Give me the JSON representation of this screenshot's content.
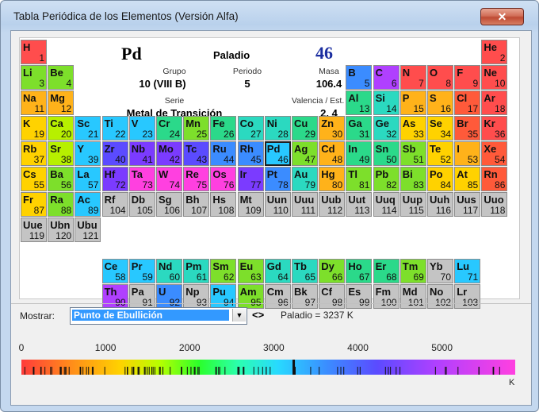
{
  "window": {
    "title": "Tabla Periódica de los Elementos (Versión Alfa)",
    "close_glyph": "✕"
  },
  "selected": {
    "symbol": "Pd",
    "name": "Paladio",
    "number": "46",
    "grupo_label": "Grupo",
    "grupo": "10 (VIII B)",
    "periodo_label": "Periodo",
    "periodo": "5",
    "masa_label": "Masa",
    "masa": "106.4",
    "serie_label": "Serie",
    "serie": "Metal de Transición",
    "valencia_label": "Valencia / Est. de Ox.",
    "valencia": "2, 4"
  },
  "controls": {
    "mostrar_label": "Mostrar:",
    "property": "Punto de Ebullición",
    "arrows": "<>",
    "readout": "Paladio = 3237 K"
  },
  "scale": {
    "ticks": [
      "0",
      "1000",
      "2000",
      "3000",
      "4000",
      "5000"
    ],
    "unit": "K",
    "max": 5870,
    "marker": 3237
  },
  "elements": [
    [
      "H",
      1,
      1,
      1,
      "#ff4d4d"
    ],
    [
      "He",
      2,
      18,
      1,
      "#ff4d4d"
    ],
    [
      "Li",
      3,
      1,
      2,
      "#7ddf2b"
    ],
    [
      "Be",
      4,
      2,
      2,
      "#7ddf2b"
    ],
    [
      "B",
      5,
      13,
      2,
      "#3b8cff"
    ],
    [
      "C",
      6,
      14,
      2,
      "#b040ff"
    ],
    [
      "N",
      7,
      15,
      2,
      "#ff4d4d"
    ],
    [
      "O",
      8,
      16,
      2,
      "#ff4d4d"
    ],
    [
      "F",
      9,
      17,
      2,
      "#ff4d4d"
    ],
    [
      "Ne",
      10,
      18,
      2,
      "#ff4d4d"
    ],
    [
      "Na",
      11,
      1,
      3,
      "#ffb21a"
    ],
    [
      "Mg",
      12,
      2,
      3,
      "#ffb21a"
    ],
    [
      "Al",
      13,
      13,
      3,
      "#2bd98a"
    ],
    [
      "Si",
      14,
      14,
      3,
      "#2bd9c0"
    ],
    [
      "P",
      15,
      15,
      3,
      "#ffb21a"
    ],
    [
      "S",
      16,
      16,
      3,
      "#ffb21a"
    ],
    [
      "Cl",
      17,
      17,
      3,
      "#ff5a3a"
    ],
    [
      "Ar",
      18,
      18,
      3,
      "#ff4d4d"
    ],
    [
      "K",
      19,
      1,
      4,
      "#ffd200"
    ],
    [
      "Ca",
      20,
      2,
      4,
      "#b7f000"
    ],
    [
      "Sc",
      21,
      3,
      4,
      "#28c8ff"
    ],
    [
      "Ti",
      22,
      4,
      4,
      "#28c8ff"
    ],
    [
      "V",
      23,
      5,
      4,
      "#28c8ff"
    ],
    [
      "Cr",
      24,
      6,
      4,
      "#2bd98a"
    ],
    [
      "Mn",
      25,
      7,
      4,
      "#7ddf2b"
    ],
    [
      "Fe",
      26,
      8,
      4,
      "#2bd98a"
    ],
    [
      "Co",
      27,
      9,
      4,
      "#2bd9c0"
    ],
    [
      "Ni",
      28,
      10,
      4,
      "#2bd9c0"
    ],
    [
      "Cu",
      29,
      11,
      4,
      "#2bd98a"
    ],
    [
      "Zn",
      30,
      12,
      4,
      "#ffb21a"
    ],
    [
      "Ga",
      31,
      13,
      4,
      "#2bd98a"
    ],
    [
      "Ge",
      32,
      14,
      4,
      "#2bd9c0"
    ],
    [
      "As",
      33,
      15,
      4,
      "#ffd200"
    ],
    [
      "Se",
      34,
      16,
      4,
      "#ffd200"
    ],
    [
      "Br",
      35,
      17,
      4,
      "#ff5a3a"
    ],
    [
      "Kr",
      36,
      18,
      4,
      "#ff4d4d"
    ],
    [
      "Rb",
      37,
      1,
      5,
      "#ffd200"
    ],
    [
      "Sr",
      38,
      2,
      5,
      "#b7f000"
    ],
    [
      "Y",
      39,
      3,
      5,
      "#28c8ff"
    ],
    [
      "Zr",
      40,
      4,
      5,
      "#5b4bff"
    ],
    [
      "Nb",
      41,
      5,
      5,
      "#7b3bff"
    ],
    [
      "Mo",
      42,
      6,
      5,
      "#7b3bff"
    ],
    [
      "Tc",
      43,
      7,
      5,
      "#5b4bff"
    ],
    [
      "Ru",
      44,
      8,
      5,
      "#3b8cff"
    ],
    [
      "Rh",
      45,
      9,
      5,
      "#3b8cff"
    ],
    [
      "Pd",
      46,
      10,
      5,
      "#28c8ff"
    ],
    [
      "Ag",
      47,
      11,
      5,
      "#7ddf2b"
    ],
    [
      "Cd",
      48,
      12,
      5,
      "#ffb21a"
    ],
    [
      "In",
      49,
      13,
      5,
      "#2bd98a"
    ],
    [
      "Sn",
      50,
      14,
      5,
      "#2bd98a"
    ],
    [
      "Sb",
      51,
      15,
      5,
      "#7ddf2b"
    ],
    [
      "Te",
      52,
      16,
      5,
      "#ffd200"
    ],
    [
      "I",
      53,
      17,
      5,
      "#ffb21a"
    ],
    [
      "Xe",
      54,
      18,
      5,
      "#ff5a3a"
    ],
    [
      "Cs",
      55,
      1,
      6,
      "#ffd200"
    ],
    [
      "Ba",
      56,
      2,
      6,
      "#7ddf2b"
    ],
    [
      "La",
      57,
      3,
      6,
      "#28c8ff"
    ],
    [
      "Hf",
      72,
      4,
      6,
      "#7b3bff"
    ],
    [
      "Ta",
      73,
      5,
      6,
      "#ff40e0"
    ],
    [
      "W",
      74,
      6,
      6,
      "#ff40e0"
    ],
    [
      "Re",
      75,
      7,
      6,
      "#ff40e0"
    ],
    [
      "Os",
      76,
      8,
      6,
      "#ff40e0"
    ],
    [
      "Ir",
      77,
      9,
      6,
      "#7b3bff"
    ],
    [
      "Pt",
      78,
      10,
      6,
      "#3b8cff"
    ],
    [
      "Au",
      79,
      11,
      6,
      "#2bd9c0"
    ],
    [
      "Hg",
      80,
      12,
      6,
      "#ffb21a"
    ],
    [
      "Tl",
      81,
      13,
      6,
      "#7ddf2b"
    ],
    [
      "Pb",
      82,
      14,
      6,
      "#7ddf2b"
    ],
    [
      "Bi",
      83,
      15,
      6,
      "#7ddf2b"
    ],
    [
      "Po",
      84,
      16,
      6,
      "#ffd200"
    ],
    [
      "At",
      85,
      17,
      6,
      "#ffd200"
    ],
    [
      "Rn",
      86,
      18,
      6,
      "#ff5a3a"
    ],
    [
      "Fr",
      87,
      1,
      7,
      "#ffd200"
    ],
    [
      "Ra",
      88,
      2,
      7,
      "#7ddf2b"
    ],
    [
      "Ac",
      89,
      3,
      7,
      "#28c8ff"
    ],
    [
      "Rf",
      104,
      4,
      7,
      "#c4c4c4"
    ],
    [
      "Db",
      105,
      5,
      7,
      "#c4c4c4"
    ],
    [
      "Sg",
      106,
      6,
      7,
      "#c4c4c4"
    ],
    [
      "Bh",
      107,
      7,
      7,
      "#c4c4c4"
    ],
    [
      "Hs",
      108,
      8,
      7,
      "#c4c4c4"
    ],
    [
      "Mt",
      109,
      9,
      7,
      "#c4c4c4"
    ],
    [
      "Uun",
      110,
      10,
      7,
      "#c4c4c4"
    ],
    [
      "Uuu",
      111,
      11,
      7,
      "#c4c4c4"
    ],
    [
      "Uub",
      112,
      12,
      7,
      "#c4c4c4"
    ],
    [
      "Uut",
      113,
      13,
      7,
      "#c4c4c4"
    ],
    [
      "Uuq",
      114,
      14,
      7,
      "#c4c4c4"
    ],
    [
      "Uup",
      115,
      15,
      7,
      "#c4c4c4"
    ],
    [
      "Uuh",
      116,
      16,
      7,
      "#c4c4c4"
    ],
    [
      "Uus",
      117,
      17,
      7,
      "#c4c4c4"
    ],
    [
      "Uuo",
      118,
      18,
      7,
      "#c4c4c4"
    ],
    [
      "Uue",
      119,
      1,
      8,
      "#c4c4c4"
    ],
    [
      "Ubn",
      120,
      2,
      8,
      "#c4c4c4"
    ],
    [
      "Ubu",
      121,
      3,
      8,
      "#c4c4c4"
    ],
    [
      "Ce",
      58,
      4,
      9.5,
      "#28c8ff"
    ],
    [
      "Pr",
      59,
      5,
      9.5,
      "#28c8ff"
    ],
    [
      "Nd",
      60,
      6,
      9.5,
      "#2bd9c0"
    ],
    [
      "Pm",
      61,
      7,
      9.5,
      "#2bd9c0"
    ],
    [
      "Sm",
      62,
      8,
      9.5,
      "#7ddf2b"
    ],
    [
      "Eu",
      63,
      9,
      9.5,
      "#7ddf2b"
    ],
    [
      "Gd",
      64,
      10,
      9.5,
      "#2bd9c0"
    ],
    [
      "Tb",
      65,
      11,
      9.5,
      "#2bd9c0"
    ],
    [
      "Dy",
      66,
      12,
      9.5,
      "#7ddf2b"
    ],
    [
      "Ho",
      67,
      13,
      9.5,
      "#2bd98a"
    ],
    [
      "Er",
      68,
      14,
      9.5,
      "#2bd98a"
    ],
    [
      "Tm",
      69,
      15,
      9.5,
      "#7ddf2b"
    ],
    [
      "Yb",
      70,
      16,
      9.5,
      "#c4c4c4"
    ],
    [
      "Lu",
      71,
      17,
      9.5,
      "#28c8ff"
    ],
    [
      "Th",
      90,
      4,
      10.5,
      "#b040ff"
    ],
    [
      "Pa",
      91,
      5,
      10.5,
      "#c4c4c4"
    ],
    [
      "U",
      92,
      6,
      10.5,
      "#3b8cff"
    ],
    [
      "Np",
      93,
      7,
      10.5,
      "#c4c4c4"
    ],
    [
      "Pu",
      94,
      8,
      10.5,
      "#28c8ff"
    ],
    [
      "Am",
      95,
      9,
      10.5,
      "#7ddf2b"
    ],
    [
      "Cm",
      96,
      10,
      10.5,
      "#c4c4c4"
    ],
    [
      "Bk",
      97,
      11,
      10.5,
      "#c4c4c4"
    ],
    [
      "Cf",
      98,
      12,
      10.5,
      "#c4c4c4"
    ],
    [
      "Es",
      99,
      13,
      10.5,
      "#c4c4c4"
    ],
    [
      "Fm",
      100,
      14,
      10.5,
      "#c4c4c4"
    ],
    [
      "Md",
      101,
      15,
      10.5,
      "#c4c4c4"
    ],
    [
      "No",
      102,
      16,
      10.5,
      "#c4c4c4"
    ],
    [
      "Lr",
      103,
      17,
      10.5,
      "#c4c4c4"
    ]
  ]
}
